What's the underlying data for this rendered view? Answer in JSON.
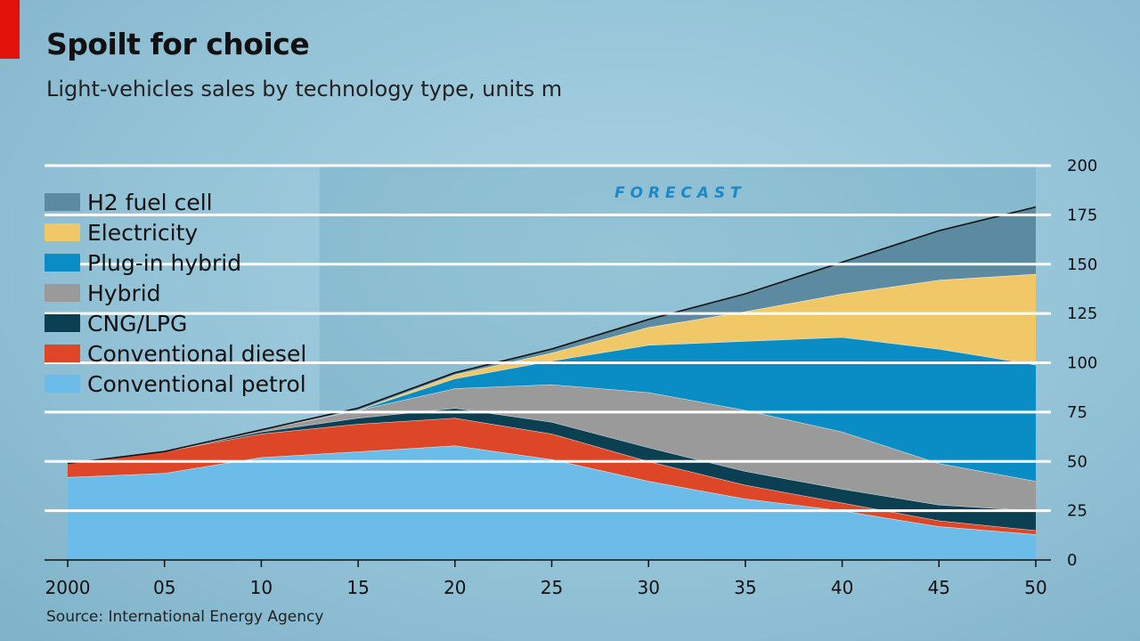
{
  "title": "Spoilt for choice",
  "subtitle": "Light-vehicles sales by technology type, units m",
  "source": "Source: International Energy Agency",
  "forecast_label": "F O R E C A S T",
  "colors": {
    "conventional_petrol": "#6cbcea",
    "conventional_diesel": "#dd4727",
    "cng_lpg": "#0b3f52",
    "hybrid": "#9a9a9a",
    "plug_in_hybrid": "#0a8cc4",
    "electricity": "#f0c868",
    "h2_fuel_cell": "#5c8aa0"
  },
  "chart_data": {
    "type": "area",
    "stacked": true,
    "title": "Spoilt for choice",
    "subtitle": "Light-vehicles sales by technology type, units m",
    "x": [
      2000,
      2005,
      2010,
      2015,
      2020,
      2025,
      2030,
      2035,
      2040,
      2045,
      2050
    ],
    "x_tick_labels": [
      "2000",
      "05",
      "10",
      "15",
      "20",
      "25",
      "30",
      "35",
      "40",
      "45",
      "50"
    ],
    "y_ticks": [
      "0",
      "25",
      "50",
      "75",
      "100",
      "125",
      "150",
      "175",
      "200"
    ],
    "ylim": [
      0,
      200
    ],
    "forecast_start": 2013,
    "series": [
      {
        "name": "Conventional petrol",
        "values": [
          42,
          44,
          52,
          55,
          58,
          51,
          40,
          31,
          25,
          17,
          13
        ]
      },
      {
        "name": "Conventional diesel",
        "values": [
          7,
          11,
          12,
          14,
          14,
          13,
          10,
          7,
          4,
          3,
          2
        ]
      },
      {
        "name": "CNG/LPG",
        "values": [
          0,
          0,
          1,
          3,
          5,
          6,
          7,
          7,
          7,
          8,
          10
        ]
      },
      {
        "name": "Hybrid",
        "values": [
          0,
          0,
          1,
          4,
          10,
          19,
          28,
          31,
          29,
          21,
          15
        ]
      },
      {
        "name": "Plug-in hybrid",
        "values": [
          0,
          0,
          0,
          0,
          5,
          12,
          24,
          35,
          48,
          58,
          59
        ]
      },
      {
        "name": "Electricity",
        "values": [
          0,
          0,
          0,
          0,
          2,
          4,
          9,
          15,
          22,
          35,
          46
        ]
      },
      {
        "name": "H2 fuel cell",
        "values": [
          0,
          0,
          0,
          1,
          1,
          2,
          4,
          9,
          16,
          25,
          34
        ]
      }
    ],
    "legend": [
      "H2 fuel cell",
      "Electricity",
      "Plug-in hybrid",
      "Hybrid",
      "CNG/LPG",
      "Conventional diesel",
      "Conventional petrol"
    ],
    "legend_position": "top-left",
    "y_axis_position": "right",
    "grid": true
  }
}
